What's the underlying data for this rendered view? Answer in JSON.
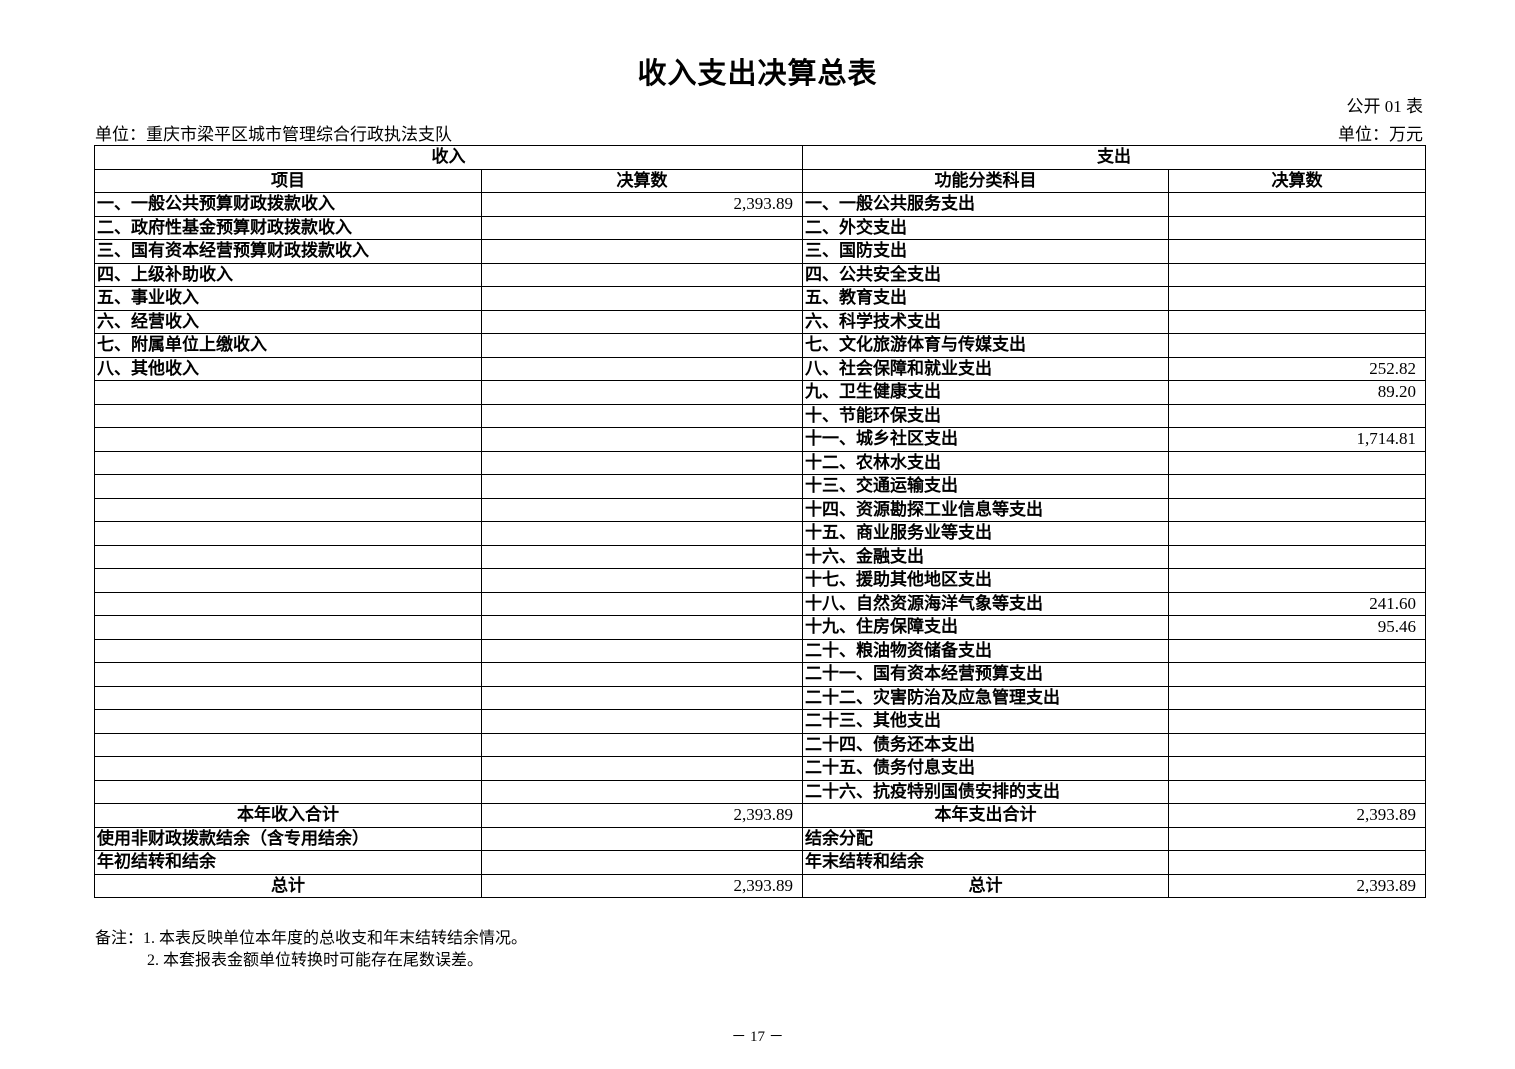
{
  "title": "收入支出决算总表",
  "table_code": "公开 01 表",
  "unit_org": "单位：重庆市梁平区城市管理综合行政执法支队",
  "unit_currency": "单位：万元",
  "headers": {
    "income": "收入",
    "expense": "支出",
    "income_item": "项目",
    "income_amount": "决算数",
    "expense_item": "功能分类科目",
    "expense_amount": "决算数"
  },
  "rows": [
    {
      "income_item": "一、一般公共预算财政拨款收入",
      "income_amount": "2,393.89",
      "expense_item": "一、一般公共服务支出",
      "expense_amount": ""
    },
    {
      "income_item": "二、政府性基金预算财政拨款收入",
      "income_amount": "",
      "expense_item": "二、外交支出",
      "expense_amount": ""
    },
    {
      "income_item": "三、国有资本经营预算财政拨款收入",
      "income_amount": "",
      "expense_item": "三、国防支出",
      "expense_amount": ""
    },
    {
      "income_item": "四、上级补助收入",
      "income_amount": "",
      "expense_item": "四、公共安全支出",
      "expense_amount": ""
    },
    {
      "income_item": "五、事业收入",
      "income_amount": "",
      "expense_item": "五、教育支出",
      "expense_amount": ""
    },
    {
      "income_item": "六、经营收入",
      "income_amount": "",
      "expense_item": "六、科学技术支出",
      "expense_amount": ""
    },
    {
      "income_item": "七、附属单位上缴收入",
      "income_amount": "",
      "expense_item": "七、文化旅游体育与传媒支出",
      "expense_amount": ""
    },
    {
      "income_item": "八、其他收入",
      "income_amount": "",
      "expense_item": "八、社会保障和就业支出",
      "expense_amount": "252.82"
    },
    {
      "income_item": "",
      "income_amount": "",
      "expense_item": "九、卫生健康支出",
      "expense_amount": "89.20"
    },
    {
      "income_item": "",
      "income_amount": "",
      "expense_item": "十、节能环保支出",
      "expense_amount": ""
    },
    {
      "income_item": "",
      "income_amount": "",
      "expense_item": "十一、城乡社区支出",
      "expense_amount": "1,714.81"
    },
    {
      "income_item": "",
      "income_amount": "",
      "expense_item": "十二、农林水支出",
      "expense_amount": ""
    },
    {
      "income_item": "",
      "income_amount": "",
      "expense_item": "十三、交通运输支出",
      "expense_amount": ""
    },
    {
      "income_item": "",
      "income_amount": "",
      "expense_item": "十四、资源勘探工业信息等支出",
      "expense_amount": ""
    },
    {
      "income_item": "",
      "income_amount": "",
      "expense_item": "十五、商业服务业等支出",
      "expense_amount": ""
    },
    {
      "income_item": "",
      "income_amount": "",
      "expense_item": "十六、金融支出",
      "expense_amount": ""
    },
    {
      "income_item": "",
      "income_amount": "",
      "expense_item": "十七、援助其他地区支出",
      "expense_amount": ""
    },
    {
      "income_item": "",
      "income_amount": "",
      "expense_item": "十八、自然资源海洋气象等支出",
      "expense_amount": "241.60"
    },
    {
      "income_item": "",
      "income_amount": "",
      "expense_item": "十九、住房保障支出",
      "expense_amount": "95.46"
    },
    {
      "income_item": "",
      "income_amount": "",
      "expense_item": "二十、粮油物资储备支出",
      "expense_amount": ""
    },
    {
      "income_item": "",
      "income_amount": "",
      "expense_item": "二十一、国有资本经营预算支出",
      "expense_amount": ""
    },
    {
      "income_item": "",
      "income_amount": "",
      "expense_item": "二十二、灾害防治及应急管理支出",
      "expense_amount": ""
    },
    {
      "income_item": "",
      "income_amount": "",
      "expense_item": "二十三、其他支出",
      "expense_amount": ""
    },
    {
      "income_item": "",
      "income_amount": "",
      "expense_item": "二十四、债务还本支出",
      "expense_amount": ""
    },
    {
      "income_item": "",
      "income_amount": "",
      "expense_item": "二十五、债务付息支出",
      "expense_amount": ""
    },
    {
      "income_item": "",
      "income_amount": "",
      "expense_item": "二十六、抗疫特别国债安排的支出",
      "expense_amount": ""
    }
  ],
  "summary_rows": [
    {
      "income_item": "本年收入合计",
      "income_amount": "2,393.89",
      "expense_item": "本年支出合计",
      "expense_amount": "2,393.89",
      "center": true
    },
    {
      "income_item": "使用非财政拨款结余（含专用结余）",
      "income_amount": "",
      "expense_item": "结余分配",
      "expense_amount": "",
      "center": false
    },
    {
      "income_item": "年初结转和结余",
      "income_amount": "",
      "expense_item": "年末结转和结余",
      "expense_amount": "",
      "center": false
    },
    {
      "income_item": "总计",
      "income_amount": "2,393.89",
      "expense_item": "总计",
      "expense_amount": "2,393.89",
      "center": true
    }
  ],
  "notes": [
    "备注：1. 本表反映单位本年度的总收支和年末结转结余情况。",
    "2. 本套报表金额单位转换时可能存在尾数误差。"
  ],
  "page_number": "－ 17 －"
}
